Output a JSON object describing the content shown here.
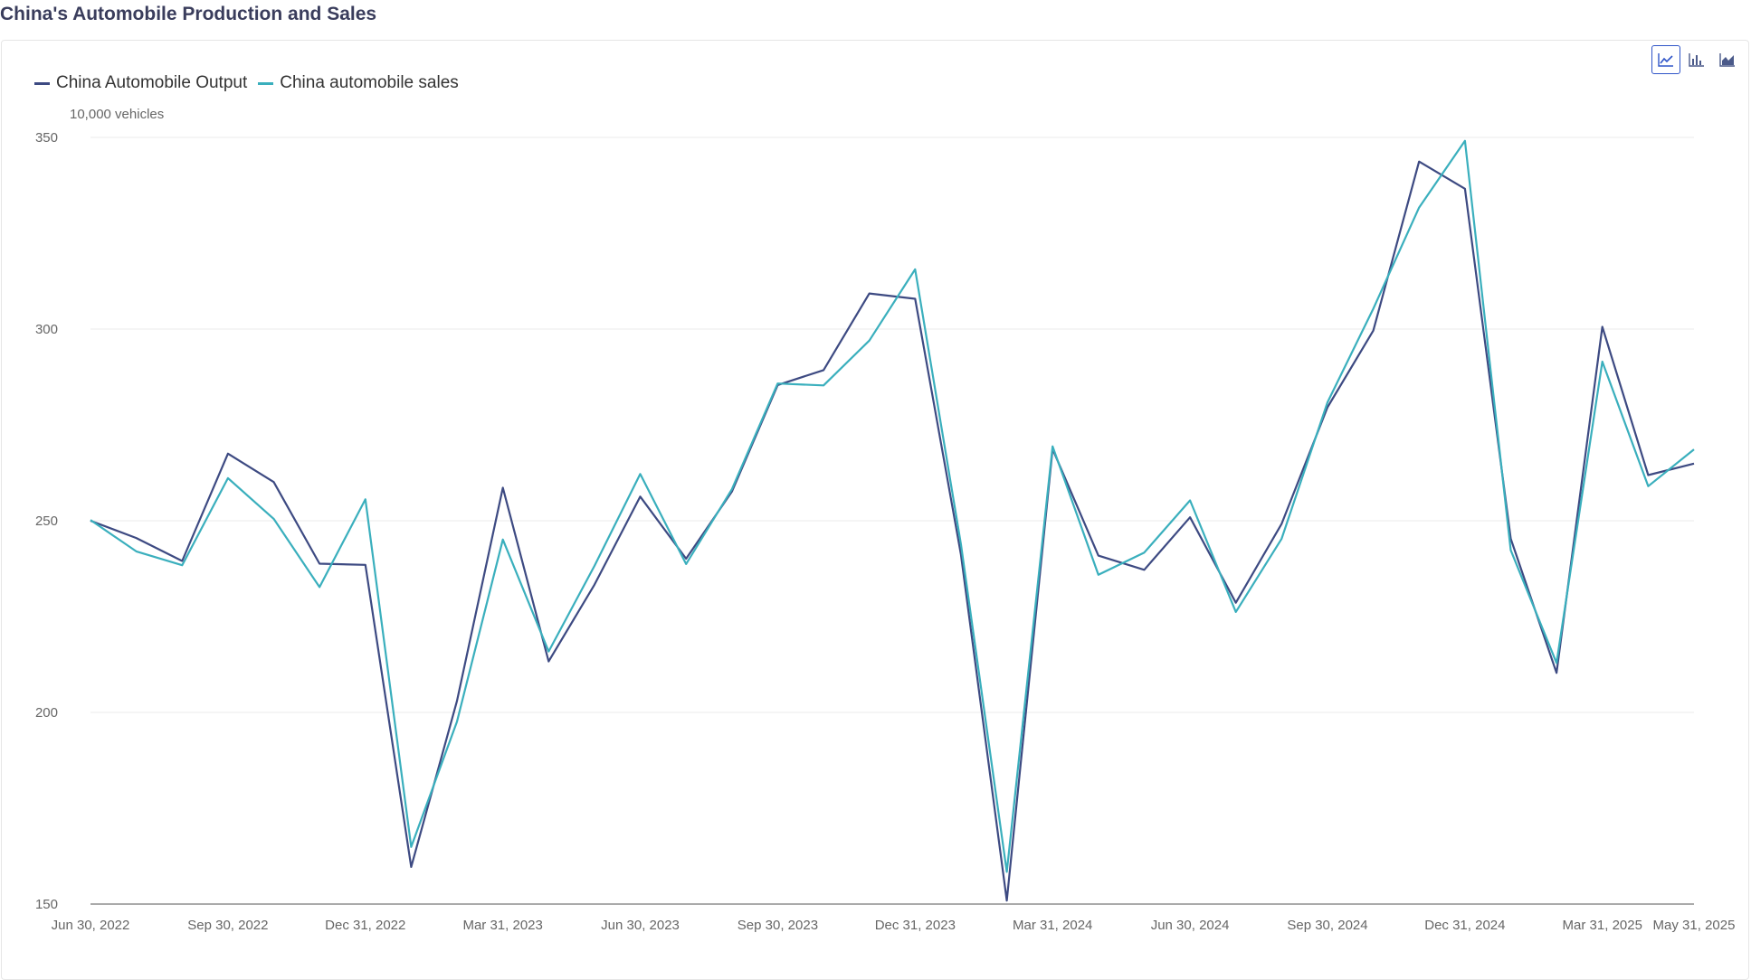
{
  "page": {
    "title": "China's Automobile Production and Sales"
  },
  "toolbar": {
    "buttons": [
      {
        "icon": "line-chart-icon",
        "active": true
      },
      {
        "icon": "bar-chart-icon",
        "active": false
      },
      {
        "icon": "area-chart-icon",
        "active": false
      }
    ]
  },
  "chart_data": {
    "type": "line",
    "title": "China's Automobile Production and Sales",
    "ylabel": "10,000 vehicles",
    "ylim": [
      150,
      350
    ],
    "yticks": [
      150,
      200,
      250,
      300,
      350
    ],
    "grid": true,
    "legend_position": "top-left",
    "x": [
      "Jun 30, 2022",
      "Jul 31, 2022",
      "Aug 31, 2022",
      "Sep 30, 2022",
      "Oct 31, 2022",
      "Nov 30, 2022",
      "Dec 31, 2022",
      "Jan 31, 2023",
      "Feb 28, 2023",
      "Mar 31, 2023",
      "Apr 30, 2023",
      "May 31, 2023",
      "Jun 30, 2023",
      "Jul 31, 2023",
      "Aug 31, 2023",
      "Sep 30, 2023",
      "Oct 31, 2023",
      "Nov 30, 2023",
      "Dec 31, 2023",
      "Jan 31, 2024",
      "Feb 29, 2024",
      "Mar 31, 2024",
      "Apr 30, 2024",
      "May 31, 2024",
      "Jun 30, 2024",
      "Jul 31, 2024",
      "Aug 31, 2024",
      "Sep 30, 2024",
      "Oct 31, 2024",
      "Nov 30, 2024",
      "Dec 31, 2024",
      "Jan 31, 2025",
      "Feb 28, 2025",
      "Mar 31, 2025",
      "Apr 30, 2025",
      "May 31, 2025"
    ],
    "xtick_labels": [
      "Jun 30, 2022",
      "Sep 30, 2022",
      "Dec 31, 2022",
      "Mar 31, 2023",
      "Jun 30, 2023",
      "Sep 30, 2023",
      "Dec 31, 2023",
      "Mar 31, 2024",
      "Jun 30, 2024",
      "Sep 30, 2024",
      "Dec 31, 2024",
      "Mar 31, 2025",
      "May 31, 2025"
    ],
    "series": [
      {
        "name": "China Automobile Output",
        "color": "#3d4a82",
        "values": [
          250,
          245.5,
          239.5,
          267.5,
          260.1,
          238.8,
          238.5,
          159.7,
          203,
          258.6,
          213.3,
          233.3,
          256.3,
          240.1,
          257.6,
          285.4,
          289.3,
          309.3,
          307.9,
          241.2,
          150.9,
          268.7,
          240.9,
          237.2,
          250.9,
          228.6,
          249.2,
          279.6,
          299.6,
          343.7,
          336.6,
          245.3,
          210.3,
          300.6,
          261.9,
          264.9
        ]
      },
      {
        "name": "China automobile sales",
        "color": "#3aafbd",
        "values": [
          250.2,
          242,
          238.4,
          261.1,
          250.5,
          232.7,
          255.6,
          164.9,
          197.6,
          245.1,
          215.9,
          238.2,
          262.2,
          238.7,
          258.2,
          285.8,
          285.3,
          297,
          315.6,
          243.9,
          158.4,
          269.4,
          235.9,
          241.7,
          255.3,
          226.2,
          245.3,
          280.9,
          305.3,
          331.7,
          349.1,
          242.3,
          212.9,
          291.5,
          259,
          268.6
        ]
      }
    ]
  }
}
